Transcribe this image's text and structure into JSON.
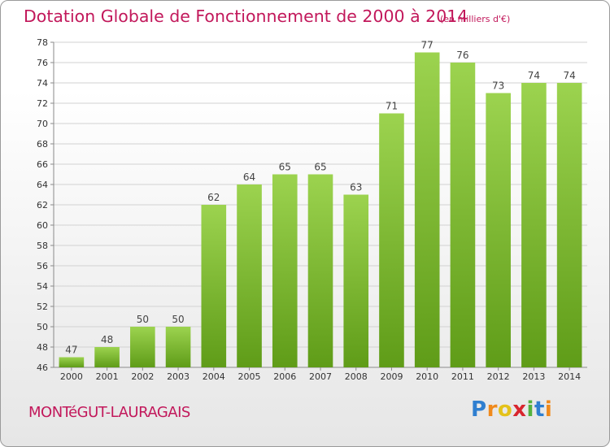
{
  "title": "Dotation Globale de Fonctionnement de 2000 à 2014",
  "subtitle": "(en milliers d'€)",
  "town": "MONTéGUT-LAURAGAIS",
  "logo": {
    "letters": [
      {
        "char": "P",
        "color": "#2f7fd0"
      },
      {
        "char": "r",
        "color": "#f08a1c"
      },
      {
        "char": "o",
        "color": "#e4c21a"
      },
      {
        "char": "x",
        "color": "#d8262e"
      },
      {
        "char": "i",
        "color": "#53b23e"
      },
      {
        "char": "t",
        "color": "#2f7fd0"
      },
      {
        "char": "i",
        "color": "#f08a1c"
      }
    ]
  },
  "colors": {
    "title": "#c2185b",
    "bar_top": "#9cd34f",
    "bar_bottom": "#5f9c18",
    "grid": "#d2d2d2",
    "axis": "#8a8a8a"
  },
  "chart_data": {
    "type": "bar",
    "title": "Dotation Globale de Fonctionnement de 2000 à 2014",
    "subtitle": "(en milliers d'€)",
    "categories": [
      "2000",
      "2001",
      "2002",
      "2003",
      "2004",
      "2005",
      "2006",
      "2007",
      "2008",
      "2009",
      "2010",
      "2011",
      "2012",
      "2013",
      "2014"
    ],
    "values": [
      47,
      48,
      50,
      50,
      62,
      64,
      65,
      65,
      63,
      71,
      77,
      76,
      73,
      74,
      74
    ],
    "ylim": [
      46,
      78
    ],
    "yticks": [
      46,
      48,
      50,
      52,
      54,
      56,
      58,
      60,
      62,
      64,
      66,
      68,
      70,
      72,
      74,
      76,
      78
    ],
    "grid": true,
    "data_labels": true
  }
}
